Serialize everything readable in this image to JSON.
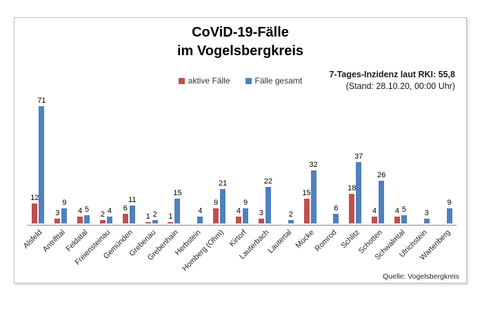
{
  "chart": {
    "title_line1": "CoViD-19-Fälle",
    "title_line2": "im Vogelsbergkreis",
    "annotation_line1": "7-Tages-Inzidenz laut RKI: 55,8",
    "annotation_line2": "(Stand: 28.10.20, 00:00 Uhr)",
    "source": "Quelle: Vogelsbergkreis",
    "colors": {
      "active": "#C0504D",
      "total": "#4F81BD"
    },
    "legend": [
      {
        "label": "aktive Fälle",
        "color": "#C0504D"
      },
      {
        "label": "Fälle gesamt",
        "color": "#4F81BD"
      }
    ]
  },
  "chart_data": {
    "type": "bar",
    "title": "CoViD-19-Fälle im Vogelsbergkreis",
    "xlabel": "",
    "ylabel": "",
    "ylim": [
      0,
      80
    ],
    "grid": false,
    "legend_position": "top-center",
    "data_labels": true,
    "categories": [
      "Alsfeld",
      "Antrifttal",
      "Feldatal",
      "Freiensteinau",
      "Gemünden",
      "Grebenau",
      "Grebenhain",
      "Herbstein",
      "Homberg (Ohm)",
      "Kirtorf",
      "Lauterbach",
      "Lautertal",
      "Mücke",
      "Romrod",
      "Schlitz",
      "Schotten",
      "Schwalmtal",
      "Ulrichstein",
      "Wartenberg"
    ],
    "series": [
      {
        "name": "aktive Fälle",
        "color": "#C0504D",
        "values": [
          12,
          3,
          4,
          2,
          6,
          1,
          1,
          null,
          9,
          4,
          3,
          null,
          15,
          null,
          18,
          4,
          4,
          null,
          null
        ]
      },
      {
        "name": "Fälle gesamt",
        "color": "#4F81BD",
        "values": [
          71,
          9,
          5,
          4,
          11,
          2,
          15,
          4,
          21,
          9,
          22,
          2,
          32,
          6,
          37,
          26,
          5,
          3,
          9
        ]
      }
    ]
  }
}
